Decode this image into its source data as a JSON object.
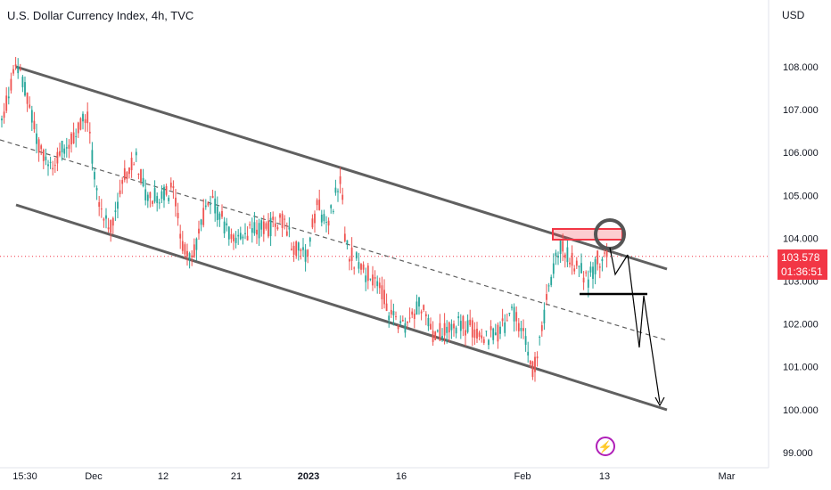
{
  "header": {
    "title": "U.S. Dollar Currency Index, 4h, TVC",
    "currency": "USD"
  },
  "price_badge": {
    "price": "103.578",
    "countdown": "01:36:51",
    "color": "#f23645"
  },
  "icons": {
    "bolt": "lightning-bolt-icon"
  },
  "colors": {
    "up": "#26a69a",
    "down": "#ef5350",
    "channel": "#606060",
    "price_line": "#f23645",
    "highlight_box": "#f23645",
    "bolt": "#b01fb8"
  },
  "chart_data": {
    "type": "candlestick",
    "symbol": "U.S. Dollar Currency Index",
    "interval": "4h",
    "source": "TVC",
    "ylim": [
      99.0,
      109.0
    ],
    "y_ticks": [
      "108.000",
      "107.000",
      "106.000",
      "105.000",
      "104.000",
      "103.000",
      "102.000",
      "101.000",
      "100.000",
      "99.000"
    ],
    "x_ticks": [
      "15:30",
      "Dec",
      "12",
      "21",
      "2023",
      "16",
      "Feb",
      "13",
      "Mar"
    ],
    "last_price": 103.578,
    "series_path": [
      [
        0,
        106.5
      ],
      [
        12,
        107.6
      ],
      [
        18,
        108.0
      ],
      [
        28,
        107.5
      ],
      [
        40,
        106.4
      ],
      [
        55,
        105.6
      ],
      [
        70,
        106.1
      ],
      [
        85,
        106.4
      ],
      [
        98,
        106.9
      ],
      [
        110,
        104.8
      ],
      [
        125,
        104.3
      ],
      [
        140,
        105.5
      ],
      [
        152,
        105.9
      ],
      [
        165,
        104.9
      ],
      [
        180,
        105.0
      ],
      [
        195,
        105.1
      ],
      [
        205,
        103.7
      ],
      [
        218,
        103.7
      ],
      [
        228,
        104.5
      ],
      [
        240,
        104.8
      ],
      [
        255,
        104.2
      ],
      [
        270,
        103.9
      ],
      [
        285,
        104.2
      ],
      [
        300,
        104.2
      ],
      [
        315,
        104.5
      ],
      [
        330,
        103.8
      ],
      [
        345,
        103.6
      ],
      [
        355,
        104.8
      ],
      [
        368,
        104.3
      ],
      [
        382,
        105.5
      ],
      [
        388,
        103.8
      ],
      [
        398,
        103.5
      ],
      [
        410,
        103.2
      ],
      [
        425,
        102.9
      ],
      [
        440,
        102.1
      ],
      [
        455,
        102.0
      ],
      [
        470,
        102.5
      ],
      [
        485,
        101.8
      ],
      [
        500,
        101.8
      ],
      [
        515,
        102.0
      ],
      [
        530,
        101.9
      ],
      [
        545,
        101.7
      ],
      [
        560,
        101.8
      ],
      [
        575,
        102.3
      ],
      [
        585,
        101.9
      ],
      [
        598,
        100.9
      ],
      [
        606,
        101.6
      ],
      [
        614,
        102.6
      ],
      [
        622,
        103.5
      ],
      [
        630,
        103.9
      ],
      [
        640,
        103.5
      ],
      [
        650,
        103.3
      ],
      [
        660,
        103.0
      ],
      [
        670,
        103.5
      ],
      [
        682,
        103.6
      ]
    ],
    "drawings": {
      "upper_channel": {
        "from": [
          "2022-11-23",
          108.0
        ],
        "to": [
          "2023-02-21",
          103.3
        ]
      },
      "middle_dashed": {
        "from": [
          "2022-11-23",
          106.3
        ],
        "to": [
          "2023-02-21",
          101.6
        ]
      },
      "lower_channel": {
        "from": [
          "2022-11-23",
          104.8
        ],
        "to": [
          "2023-02-21",
          100.0
        ]
      },
      "resistance_box": {
        "price_range": [
          103.95,
          104.25
        ]
      },
      "support_line": {
        "price": 102.7
      },
      "projection": [
        [
          103.6,
          103.2
        ],
        [
          103.7,
          102.7,
          101.4,
          102.7,
          100.1
        ]
      ]
    }
  }
}
